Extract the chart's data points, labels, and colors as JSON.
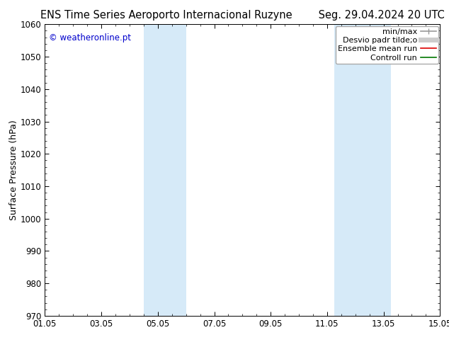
{
  "title_left": "ENS Time Series Aeroporto Internacional Ruzyne",
  "title_right": "Seg. 29.04.2024 20 UTC",
  "ylabel": "Surface Pressure (hPa)",
  "ylim": [
    970,
    1060
  ],
  "yticks": [
    970,
    980,
    990,
    1000,
    1010,
    1020,
    1030,
    1040,
    1050,
    1060
  ],
  "xtick_labels": [
    "01.05",
    "03.05",
    "05.05",
    "07.05",
    "09.05",
    "11.05",
    "13.05",
    "15.05"
  ],
  "xtick_positions": [
    0,
    2,
    4,
    6,
    8,
    10,
    12,
    14
  ],
  "xlim": [
    0,
    14
  ],
  "shaded_bands": [
    {
      "x_start": 3.5,
      "x_end": 5.0,
      "color": "#d6eaf8"
    },
    {
      "x_start": 10.25,
      "x_end": 12.25,
      "color": "#d6eaf8"
    }
  ],
  "legend_entries": [
    {
      "label": "min/max",
      "color": "#999999",
      "lw": 1.2,
      "style": "minmax"
    },
    {
      "label": "Desvio padr tilde;o",
      "color": "#cccccc",
      "lw": 5,
      "style": "solid"
    },
    {
      "label": "Ensemble mean run",
      "color": "#dd0000",
      "lw": 1.2,
      "style": "solid"
    },
    {
      "label": "Controll run",
      "color": "#007700",
      "lw": 1.2,
      "style": "solid"
    }
  ],
  "watermark": "© weatheronline.pt",
  "watermark_color": "#0000cc",
  "background_color": "#ffffff",
  "plot_bg_color": "#ffffff",
  "grid_color": "#cccccc",
  "title_fontsize": 10.5,
  "tick_fontsize": 8.5,
  "ylabel_fontsize": 9,
  "legend_fontsize": 8
}
